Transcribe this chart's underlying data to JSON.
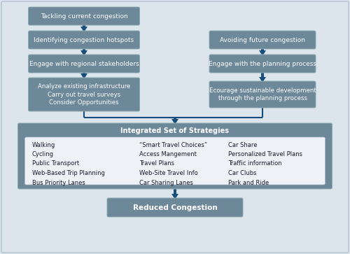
{
  "bg_color": "#dce4ec",
  "box_color": "#6d8899",
  "box_edge_color": "#7a96aa",
  "arrow_color": "#1a4e7a",
  "text_color": "#ffffff",
  "strategies_title": "Integrated Set of Strategies",
  "reduced_text": "Reduced Congestion",
  "left_boxes": [
    {
      "text": "Tackling current congestion"
    },
    {
      "text": "Identifying congestion hotspots"
    },
    {
      "text": "Engage with regional stakeholders"
    },
    {
      "text": "Analyze existing infrastructure\nCarry out travel surveys\nConsider Opportunities"
    }
  ],
  "right_boxes": [
    {
      "text": "Avoiding future congestion"
    },
    {
      "text": "Engage with the planning process"
    },
    {
      "text": "Ecourage sustainable development\nthrough the planning process"
    }
  ],
  "strategies_cols": [
    [
      "Walking",
      "Cycling",
      "Public Transport",
      "Web-Based Trip Planning",
      "Bus Priority Lanes"
    ],
    [
      "“Smart Travel Choices”",
      "Access Mangement",
      "Travel Plans",
      "Web-Site Travel Info",
      "Car Sharing Lanes"
    ],
    [
      "Car Share",
      "Personalized Travel Plans",
      "Traffic information",
      "Car Clubs",
      "Park and Ride"
    ]
  ]
}
